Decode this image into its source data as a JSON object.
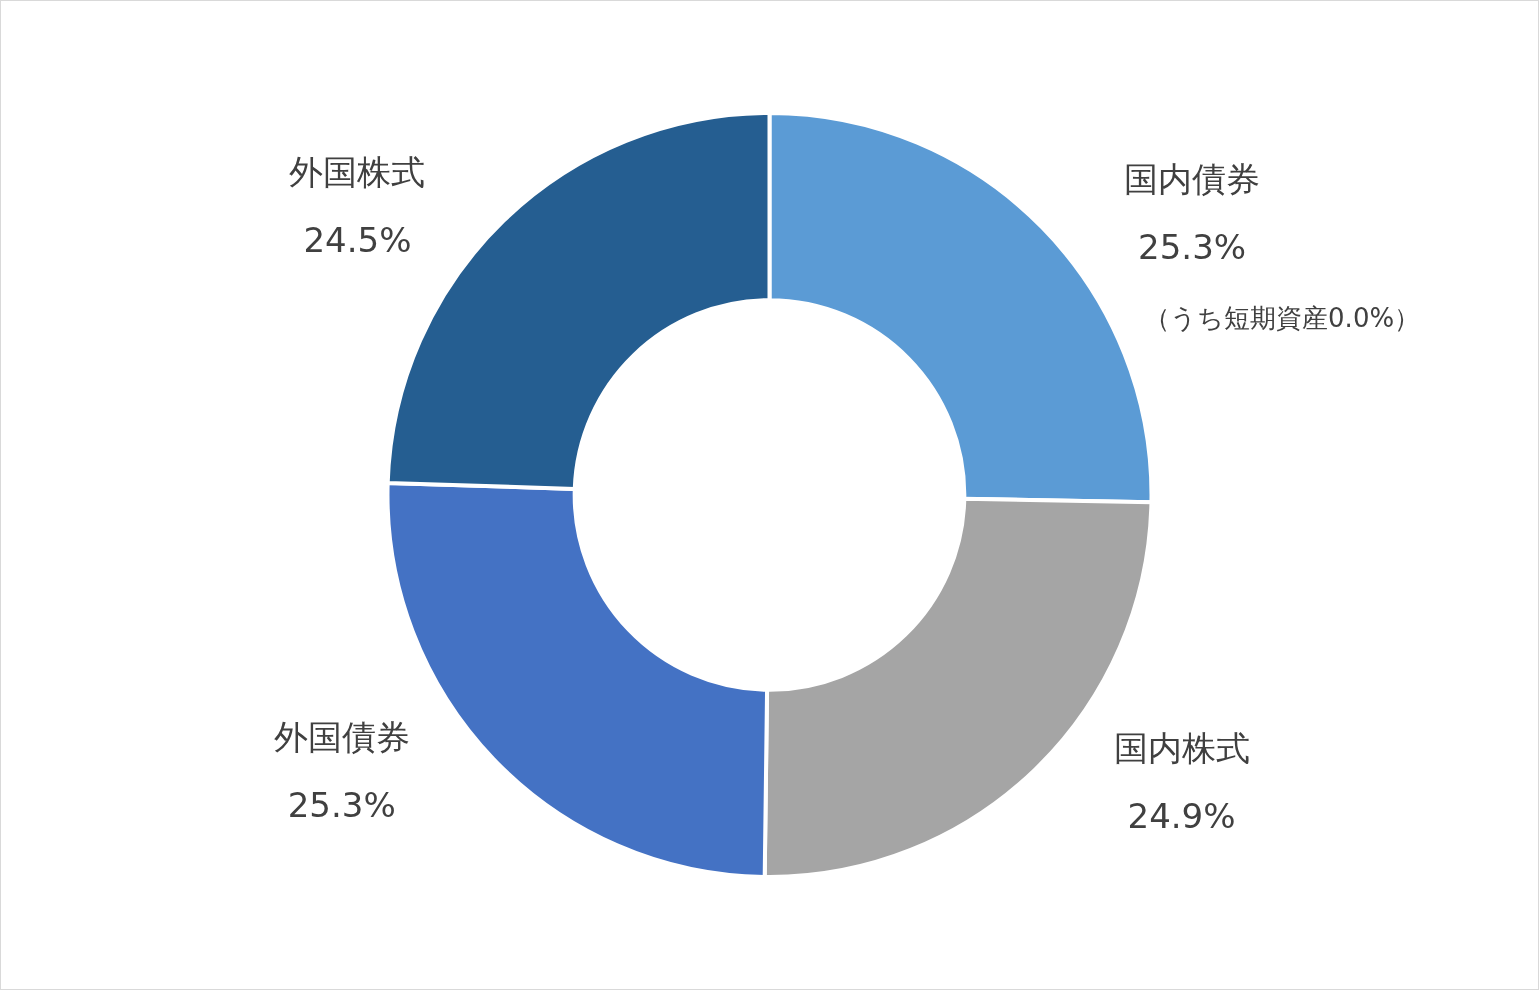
{
  "chart_data": {
    "type": "donut",
    "categories": [
      "国内債券",
      "国内株式",
      "外国債券",
      "外国株式"
    ],
    "values": [
      25.3,
      24.9,
      25.3,
      24.5
    ],
    "value_labels": [
      "25.3%",
      "24.9%",
      "25.3%",
      "24.5%"
    ],
    "colors": [
      "#5b9bd5",
      "#a5a5a5",
      "#4472c4",
      "#255e91"
    ],
    "annotations": [
      "（うち短期資産0.0%）"
    ],
    "legend": false
  }
}
